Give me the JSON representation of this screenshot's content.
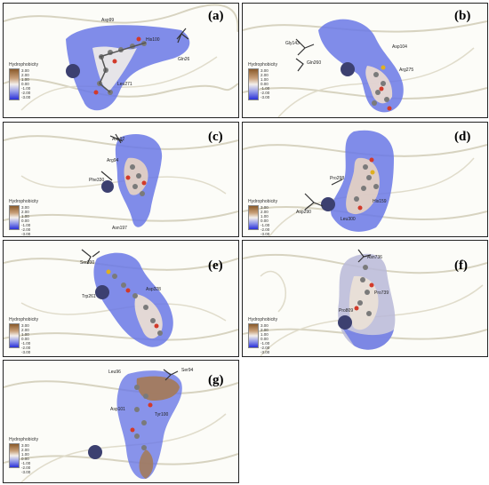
{
  "colors": {
    "hydrophilic": "#3a45e0",
    "hydrophobic": "#9b6a3c",
    "neutral": "#f2f0ee",
    "ribbon": "#d7d3c0",
    "atom": "#777777",
    "oxygen": "#d23a2a"
  },
  "legend": {
    "title": "Hydrophobicity",
    "ticks": [
      "3.00",
      "2.00",
      "1.00",
      "0.00",
      "-1.00",
      "-2.00",
      "-3.00"
    ]
  },
  "panels": [
    {
      "tag": "(a)",
      "residues": [
        "Asp99",
        "His100",
        "Gln26",
        "Leu271"
      ]
    },
    {
      "tag": "(b)",
      "residues": [
        "Gly143",
        "Gln260",
        "Asp104",
        "Arg275"
      ]
    },
    {
      "tag": "(c)",
      "residues": [
        "Asp92",
        "Arg94",
        "Phe330",
        "Asn197"
      ]
    },
    {
      "tag": "(d)",
      "residues": [
        "Pro298",
        "Asp290",
        "His159",
        "Leu300"
      ]
    },
    {
      "tag": "(e)",
      "residues": [
        "Ser100",
        "Trp261",
        "Asp328"
      ]
    },
    {
      "tag": "(f)",
      "residues": [
        "Asn736",
        "Pro739",
        "Pro809"
      ]
    },
    {
      "tag": "(g)",
      "residues": [
        "Leu96",
        "Ser94",
        "Asp101",
        "Tyr100"
      ]
    }
  ]
}
